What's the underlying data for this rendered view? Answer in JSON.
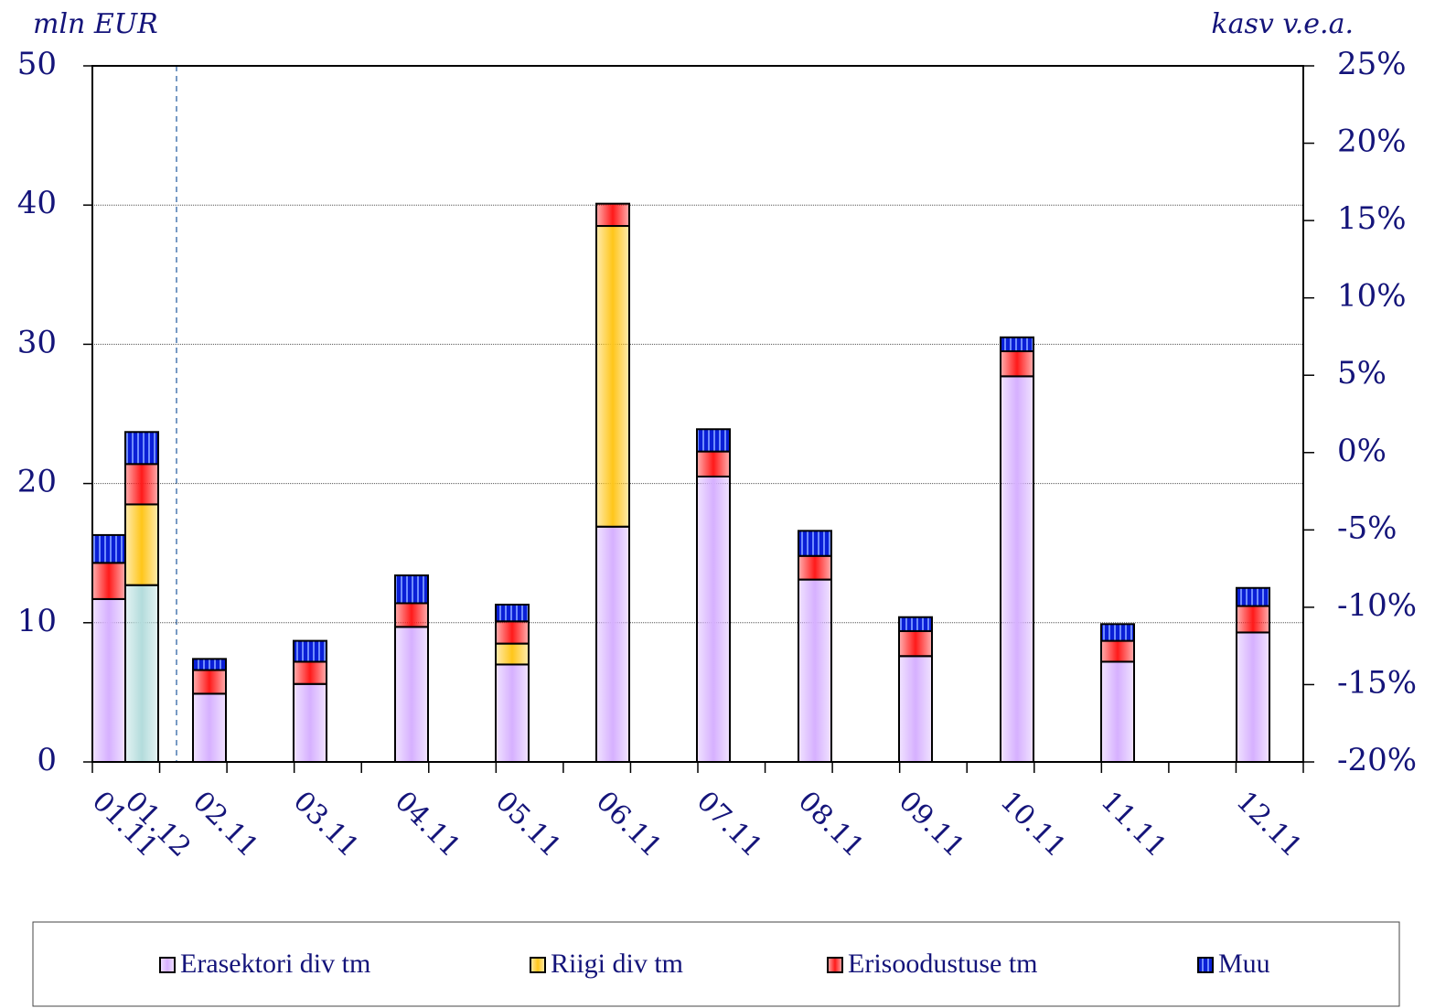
{
  "chart_data": {
    "type": "stacked_bar",
    "y_label": "mln EUR",
    "y2_label": "kasv  v.e.a.",
    "categories": [
      "01.11",
      "01.12",
      "02.11",
      "03.11",
      "04.11",
      "05.11",
      "06.11",
      "07.11",
      "08.11",
      "09.11",
      "10.11",
      "11.11",
      "12.11"
    ],
    "series": [
      {
        "name": "Erasektori div tm",
        "color": "#d6b0ff",
        "colors": [
          "#d6b0ff",
          "#b3dcdc",
          "#d6b0ff",
          "#d6b0ff",
          "#d6b0ff",
          "#d6b0ff",
          "#d6b0ff",
          "#d6b0ff",
          "#d6b0ff",
          "#d6b0ff",
          "#d6b0ff",
          "#d6b0ff",
          "#d6b0ff"
        ],
        "values": [
          11.7,
          12.7,
          4.9,
          5.6,
          9.7,
          7.0,
          16.9,
          20.5,
          13.1,
          7.6,
          27.7,
          7.2,
          9.3
        ]
      },
      {
        "name": "Riigi div tm",
        "color": "#ffc61a",
        "values": [
          0,
          5.8,
          0,
          0,
          0,
          1.5,
          21.6,
          0,
          0,
          0,
          0,
          0,
          0
        ]
      },
      {
        "name": "Erisoodustuse tm",
        "color": "#ff1a1a",
        "values": [
          2.6,
          2.9,
          1.7,
          1.6,
          1.7,
          1.6,
          1.6,
          1.8,
          1.7,
          1.8,
          1.8,
          1.5,
          1.9
        ]
      },
      {
        "name": "Muu",
        "color": "#0a1fd6",
        "values": [
          2.0,
          2.3,
          0.8,
          1.5,
          2.0,
          1.2,
          0,
          1.6,
          1.8,
          1.0,
          1.0,
          1.2,
          1.3
        ]
      }
    ],
    "ylim": [
      0,
      50
    ],
    "yticks": [
      0,
      10,
      20,
      30,
      40,
      50
    ],
    "y2lim": [
      -20,
      25
    ],
    "y2ticks": [
      {
        "value": -20,
        "label": "-20%"
      },
      {
        "value": -15,
        "label": "-15%"
      },
      {
        "value": -10,
        "label": "-10%"
      },
      {
        "value": -5,
        "label": "-5%"
      },
      {
        "value": 0,
        "label": "0%"
      },
      {
        "value": 5,
        "label": "5%"
      },
      {
        "value": 10,
        "label": "10%"
      },
      {
        "value": 15,
        "label": "15%"
      },
      {
        "value": 20,
        "label": "20%"
      },
      {
        "value": 25,
        "label": "25%"
      }
    ],
    "grid": true,
    "legend": "bottom"
  }
}
